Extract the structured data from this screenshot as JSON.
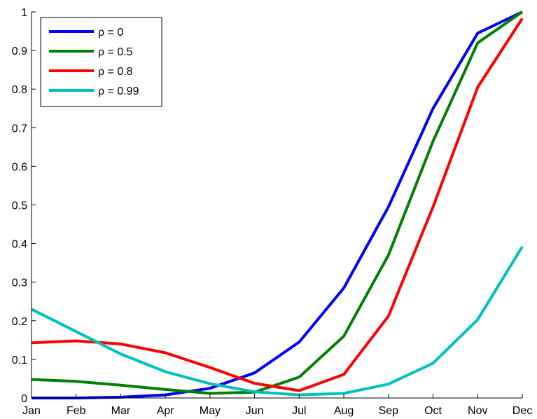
{
  "chart_data": {
    "type": "line",
    "categories": [
      "Jan",
      "Feb",
      "Mar",
      "Apr",
      "May",
      "Jun",
      "Jul",
      "Aug",
      "Sep",
      "Oct",
      "Nov",
      "Dec"
    ],
    "ylim": [
      0,
      1
    ],
    "yticks": [
      "0",
      "0.1",
      "0.2",
      "0.3",
      "0.4",
      "0.5",
      "0.6",
      "0.7",
      "0.8",
      "0.9",
      "1"
    ],
    "grid": false,
    "legend_position": "top-left",
    "series": [
      {
        "name": "ρ = 0",
        "color": "#0000ff",
        "values": [
          0.0,
          0.0,
          0.002,
          0.008,
          0.025,
          0.065,
          0.145,
          0.285,
          0.495,
          0.75,
          0.945,
          1.0
        ]
      },
      {
        "name": "ρ = 0.5",
        "color": "#008000",
        "values": [
          0.048,
          0.043,
          0.033,
          0.022,
          0.012,
          0.015,
          0.054,
          0.16,
          0.37,
          0.665,
          0.92,
          1.0
        ]
      },
      {
        "name": "ρ = 0.8",
        "color": "#ff0000",
        "values": [
          0.143,
          0.148,
          0.14,
          0.117,
          0.079,
          0.038,
          0.019,
          0.061,
          0.212,
          0.495,
          0.805,
          0.983
        ]
      },
      {
        "name": "ρ = 0.99",
        "color": "#00bfbf",
        "values": [
          0.23,
          0.172,
          0.114,
          0.068,
          0.037,
          0.016,
          0.008,
          0.012,
          0.036,
          0.09,
          0.203,
          0.392
        ]
      }
    ]
  }
}
